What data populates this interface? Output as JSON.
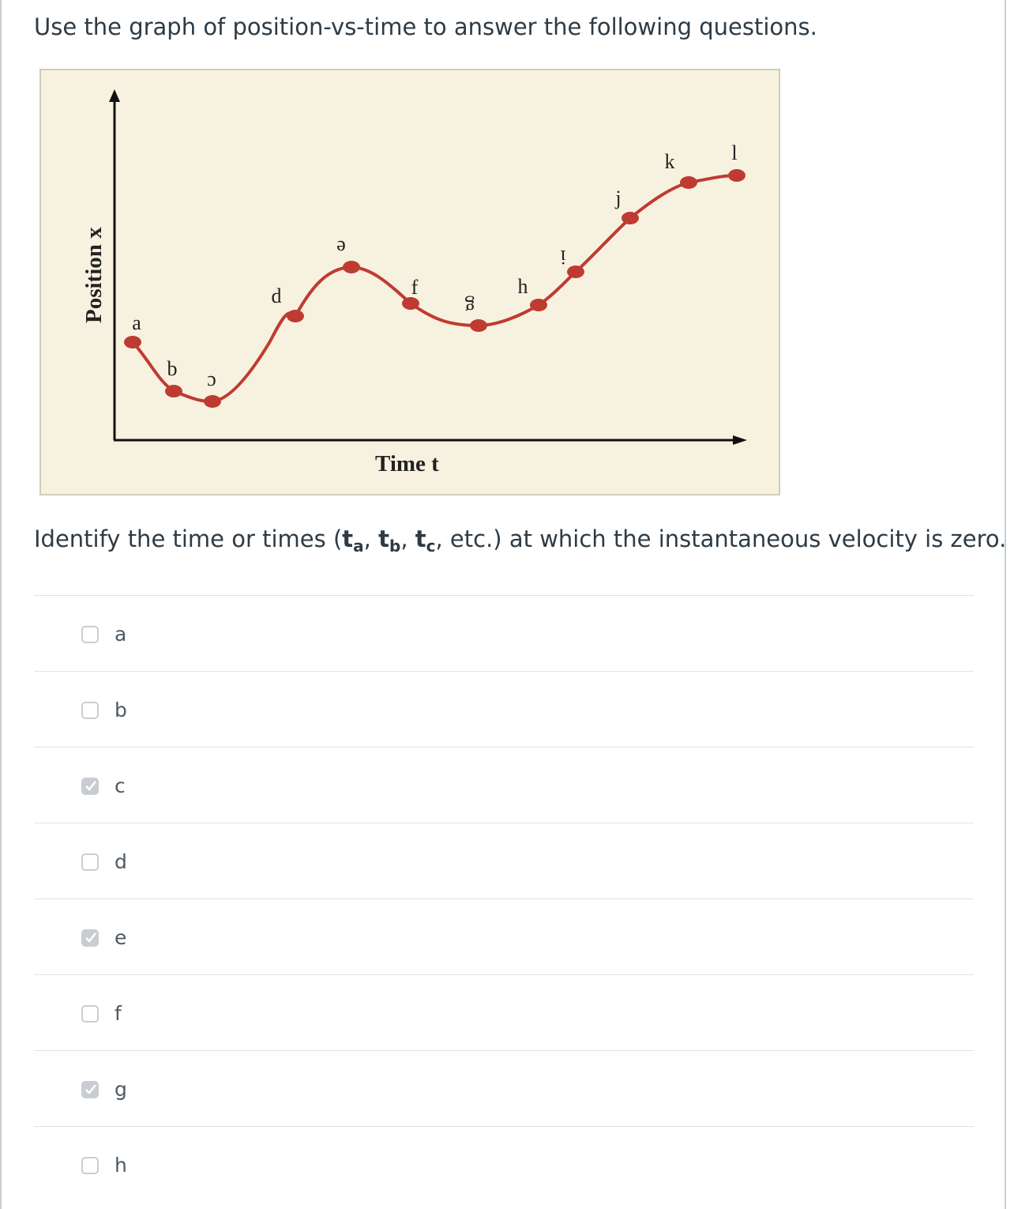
{
  "question": {
    "intro": "Use the graph of position-vs-time to answer the following questions.",
    "prompt_parts": [
      "Identify the time or times (",
      "t",
      "a",
      ", ",
      "t",
      "b",
      ", ",
      "t",
      "c",
      ", etc.) at which the instantaneous velocity is zero."
    ]
  },
  "graph": {
    "y_axis_label": "Position x",
    "x_axis_label": "Time t",
    "background_color": "#f7f2df",
    "curve_color": "#bf3b32",
    "point_labels": [
      "a",
      "b",
      "c",
      "d",
      "e",
      "f",
      "g",
      "h",
      "i",
      "j",
      "k",
      "l"
    ]
  },
  "options": [
    {
      "label": "a",
      "checked": false
    },
    {
      "label": "b",
      "checked": false
    },
    {
      "label": "c",
      "checked": true
    },
    {
      "label": "d",
      "checked": false
    },
    {
      "label": "e",
      "checked": true
    },
    {
      "label": "f",
      "checked": false
    },
    {
      "label": "g",
      "checked": true
    },
    {
      "label": "h",
      "checked": false
    }
  ]
}
